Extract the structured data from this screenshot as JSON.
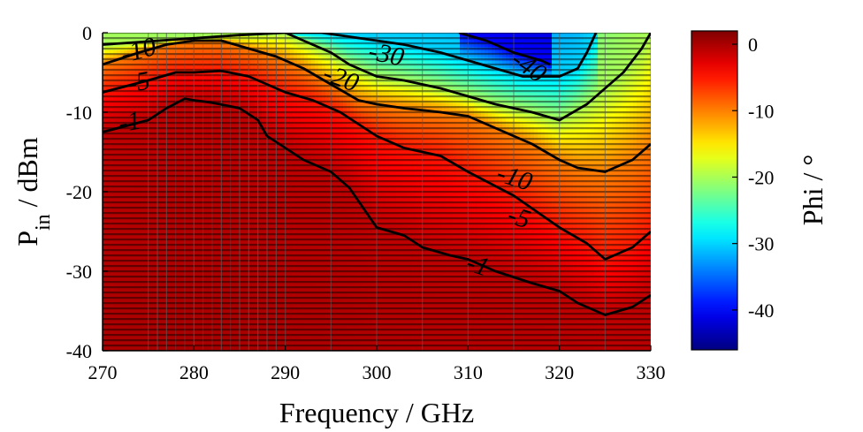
{
  "chart_data": {
    "type": "heatmap",
    "title": "",
    "xlabel": "Frequency / GHz",
    "ylabel": {
      "main": "P",
      "subscript": "in",
      "unit": " / dBm"
    },
    "colorbar_label": "Phi / °",
    "x_range": [
      270,
      330
    ],
    "y_range": [
      -40,
      0
    ],
    "x_ticks": [
      270,
      280,
      290,
      300,
      310,
      320,
      330
    ],
    "y_ticks": [
      0,
      -10,
      -20,
      -30,
      -40
    ],
    "colorbar_range": [
      -46,
      2
    ],
    "colorbar_ticks": [
      0,
      -10,
      -20,
      -30,
      -40
    ],
    "colormap": "jet",
    "grid_frequencies": [
      270,
      275,
      276,
      277,
      280,
      283,
      285,
      286,
      287,
      288,
      289,
      290,
      295,
      300,
      305,
      310,
      315,
      320,
      325,
      330
    ],
    "contours": [
      {
        "level": -1,
        "label": "-1",
        "points": [
          [
            270,
            -12.5
          ],
          [
            275,
            -11
          ],
          [
            277,
            -9.5
          ],
          [
            279,
            -8.3
          ],
          [
            280,
            -8.5
          ],
          [
            282,
            -8.8
          ],
          [
            285,
            -9.5
          ],
          [
            287,
            -11
          ],
          [
            288,
            -13
          ],
          [
            290,
            -14.5
          ],
          [
            292,
            -16
          ],
          [
            295,
            -17.5
          ],
          [
            297,
            -19.5
          ],
          [
            300,
            -24.5
          ],
          [
            303,
            -25.5
          ],
          [
            305,
            -27
          ],
          [
            308,
            -28
          ],
          [
            310,
            -28.5
          ],
          [
            313,
            -30
          ],
          [
            317,
            -31.5
          ],
          [
            320,
            -32.5
          ],
          [
            322,
            -34
          ],
          [
            325,
            -35.5
          ],
          [
            328,
            -34.5
          ],
          [
            330,
            -33
          ]
        ],
        "label_at": [
          311,
          -29.5
        ]
      },
      {
        "level": -5,
        "label": "-5",
        "points": [
          [
            270,
            -7.5
          ],
          [
            275,
            -6
          ],
          [
            278,
            -5
          ],
          [
            280,
            -5
          ],
          [
            283,
            -4.8
          ],
          [
            286,
            -5.5
          ],
          [
            288,
            -6.5
          ],
          [
            290,
            -7.5
          ],
          [
            293,
            -8.5
          ],
          [
            296,
            -10
          ],
          [
            300,
            -13
          ],
          [
            303,
            -14.5
          ],
          [
            307,
            -15.5
          ],
          [
            310,
            -17.5
          ],
          [
            315,
            -20.5
          ],
          [
            320,
            -24.5
          ],
          [
            323,
            -26.5
          ],
          [
            325,
            -28.5
          ],
          [
            328,
            -27
          ],
          [
            330,
            -25
          ]
        ],
        "label_at": [
          315.5,
          -23.5
        ]
      },
      {
        "level": -10,
        "label": "-10",
        "points": [
          [
            270,
            -4
          ],
          [
            274,
            -2.5
          ],
          [
            277,
            -1.5
          ],
          [
            280,
            -1
          ],
          [
            283,
            -1
          ],
          [
            286,
            -2
          ],
          [
            289,
            -3
          ],
          [
            292,
            -4.5
          ],
          [
            295,
            -6.5
          ],
          [
            298,
            -8.5
          ],
          [
            300,
            -9
          ],
          [
            303,
            -9.5
          ],
          [
            307,
            -10
          ],
          [
            310,
            -10.5
          ],
          [
            313,
            -12
          ],
          [
            317,
            -14
          ],
          [
            320,
            -16
          ],
          [
            322,
            -17
          ],
          [
            325,
            -17.5
          ],
          [
            328,
            -16
          ],
          [
            330,
            -14
          ]
        ],
        "label_at": [
          315,
          -18.5
        ]
      },
      {
        "level": -20,
        "label": "-20",
        "points": [
          [
            270,
            -1.5
          ],
          [
            285,
            -0.3
          ],
          [
            290,
            0
          ],
          [
            292,
            -1
          ],
          [
            295,
            -2.5
          ],
          [
            297,
            -4
          ],
          [
            300,
            -5.5
          ],
          [
            303,
            -6
          ],
          [
            307,
            -7
          ],
          [
            310,
            -8
          ],
          [
            313,
            -9
          ],
          [
            317,
            -10
          ],
          [
            320,
            -11
          ],
          [
            323,
            -9
          ],
          [
            325,
            -7
          ],
          [
            327,
            -5
          ],
          [
            329,
            -2
          ],
          [
            330,
            0
          ]
        ]
      },
      {
        "level": -30,
        "label": "-30",
        "points": [
          [
            290,
            0
          ],
          [
            294,
            0
          ],
          [
            297,
            -0.5
          ],
          [
            300,
            -1
          ],
          [
            303,
            -1.5
          ],
          [
            307,
            -2.5
          ],
          [
            310,
            -3.5
          ],
          [
            313,
            -4.5
          ],
          [
            316,
            -5.5
          ],
          [
            320,
            -5.5
          ],
          [
            322,
            -4.5
          ],
          [
            323,
            -2.5
          ],
          [
            324,
            0
          ]
        ]
      },
      {
        "level": -40,
        "label": "-40",
        "points": [
          [
            309,
            0
          ],
          [
            312,
            -1
          ],
          [
            315,
            -2.5
          ],
          [
            318,
            -3.5
          ],
          [
            319,
            -4
          ]
        ]
      }
    ],
    "label_positions": {
      "-10_left": [
        274,
        -2.5
      ],
      "-5_left": [
        274,
        -6.5
      ],
      "-1_left": [
        273,
        -11.5
      ],
      "-20": [
        296,
        -6
      ],
      "-30": [
        301,
        -3
      ],
      "-40": [
        316.5,
        -4.5
      ]
    }
  }
}
